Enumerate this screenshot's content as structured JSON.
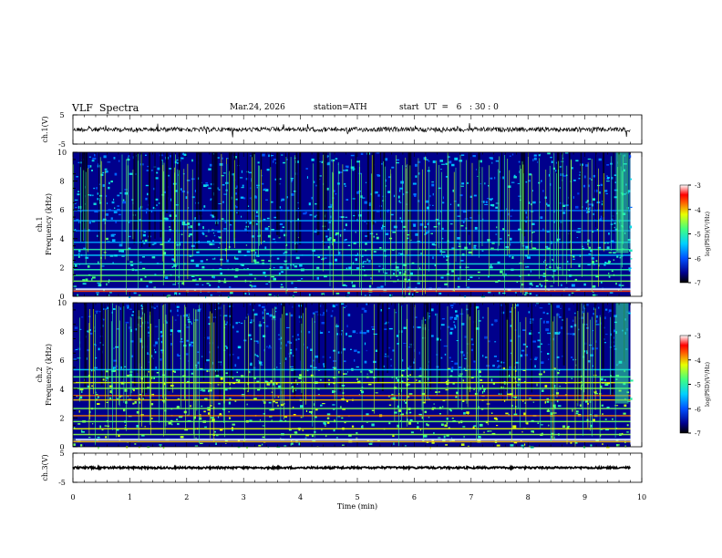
{
  "header": {
    "title": "VLF  Spectra",
    "date": "Mar.24, 2026",
    "station": "station=ATH",
    "start": "start  UT  =   6   : 30 : 0"
  },
  "chart_data": [
    {
      "type": "line",
      "name": "ch1-waveform",
      "ylabel": "ch.1(V)",
      "ylim": [
        -5,
        5
      ],
      "yticks": [
        "5",
        "-5"
      ],
      "level": 0
    },
    {
      "type": "heatmap",
      "name": "ch1-spectrogram",
      "ylabel_channel": "ch.1",
      "ylabel": "Frequency (kHz)",
      "ylim": [
        0,
        10
      ],
      "yticks": [
        "0",
        "2",
        "4",
        "6",
        "8",
        "10"
      ],
      "colorbar": {
        "label": "log(PSD)(V²/Hz)",
        "range": [
          -7,
          -3
        ],
        "ticks": [
          "-3",
          "-4",
          "-5",
          "-6",
          "-7"
        ]
      }
    },
    {
      "type": "heatmap",
      "name": "ch2-spectrogram",
      "ylabel_channel": "ch.2",
      "ylabel": "Frequency (kHz)",
      "ylim": [
        0,
        10
      ],
      "yticks": [
        "0",
        "2",
        "4",
        "6",
        "8",
        "10"
      ],
      "colorbar": {
        "label": "log(PSD)(V²/Hz)",
        "range": [
          -7,
          -3
        ],
        "ticks": [
          "-3",
          "-4",
          "-5",
          "-6",
          "-7"
        ]
      }
    },
    {
      "type": "line",
      "name": "ch3-waveform",
      "ylabel": "ch.3(V)",
      "ylim": [
        -5,
        5
      ],
      "yticks": [
        "5",
        "-5"
      ],
      "level": 0
    }
  ],
  "x_axis": {
    "xlabel": "Time  (min)",
    "xlim": [
      0,
      10
    ],
    "ticks": [
      "0",
      "1",
      "2",
      "3",
      "4",
      "5",
      "6",
      "7",
      "8",
      "9",
      "10"
    ],
    "data_end": 9.8
  },
  "colors": {
    "background": "#00008c",
    "axis": "#000000"
  }
}
